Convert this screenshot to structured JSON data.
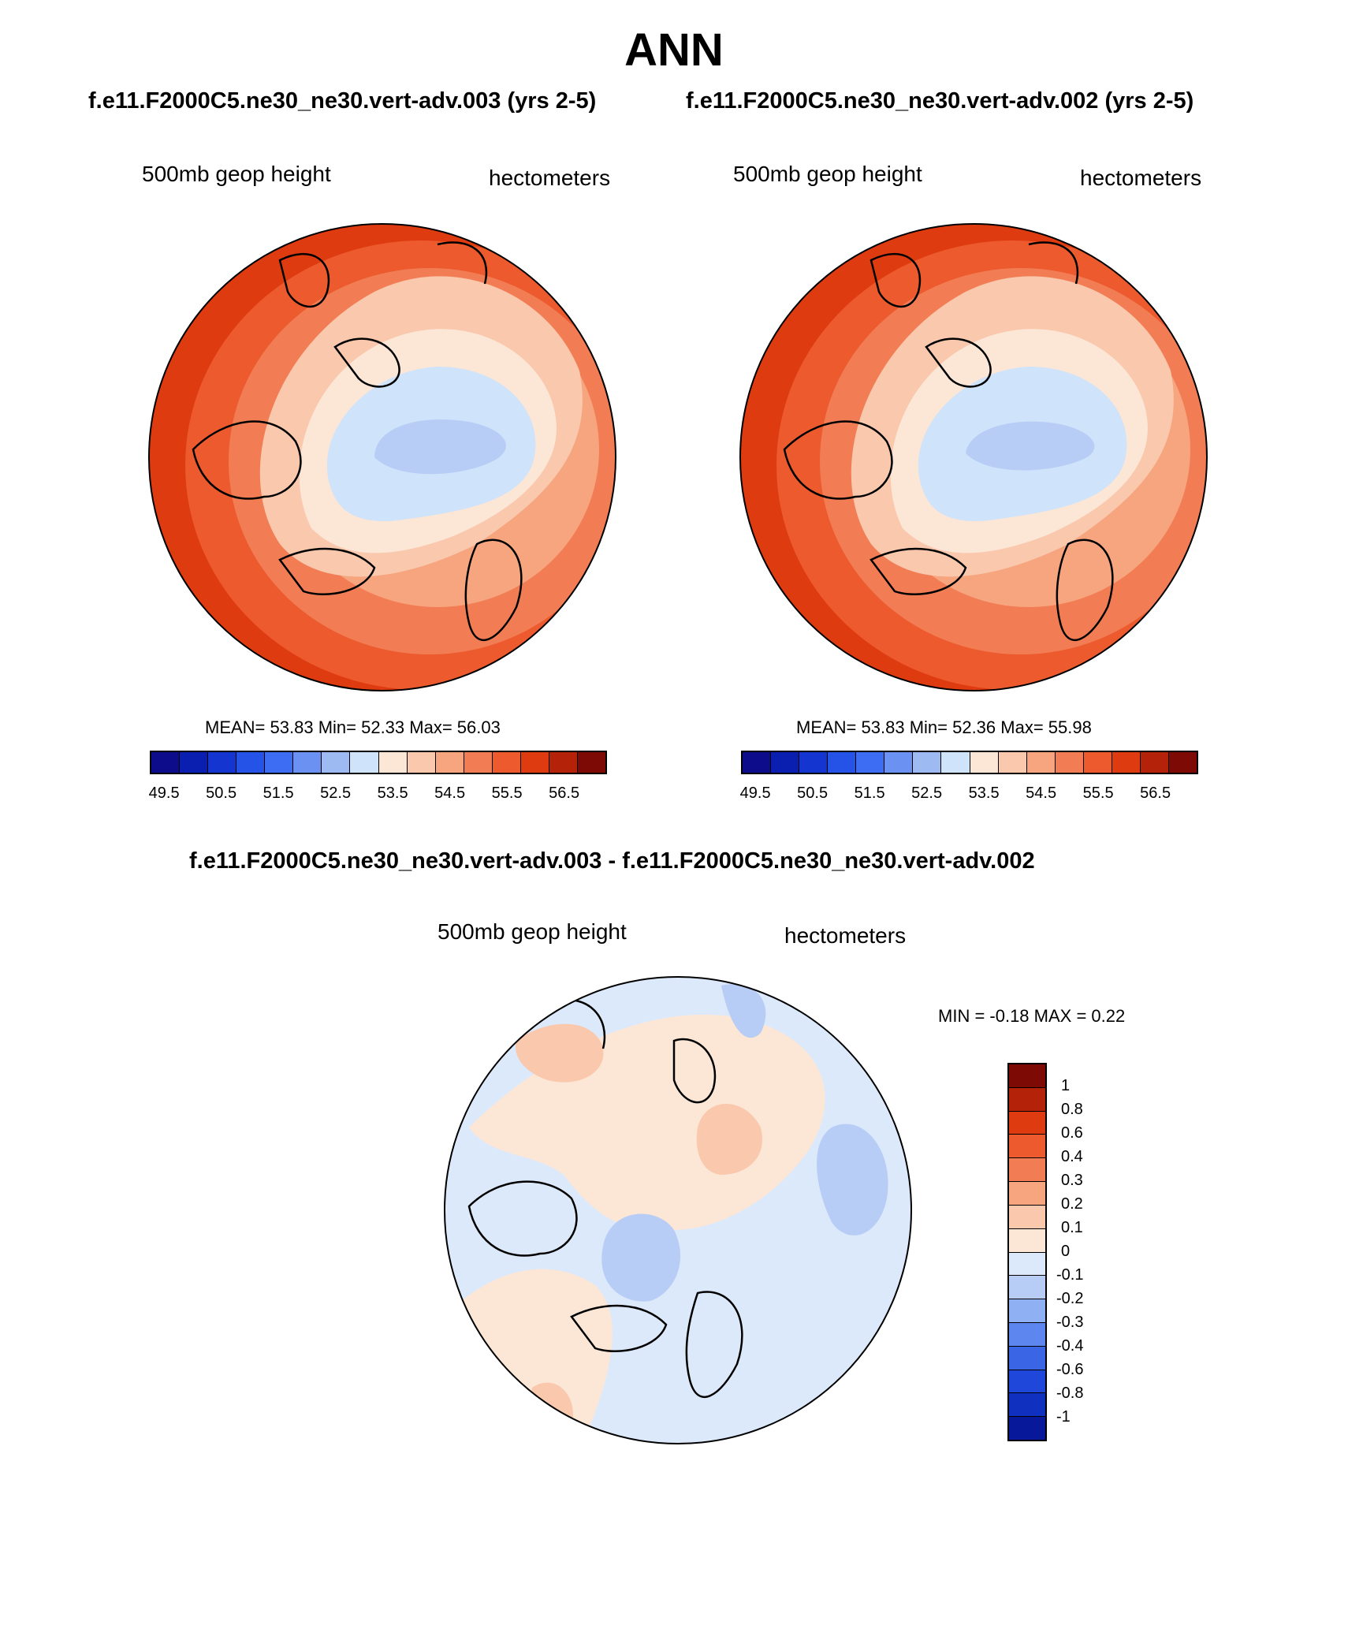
{
  "title": "ANN",
  "top_subtitle_left": "f.e11.F2000C5.ne30_ne30.vert-adv.003 (yrs 2-5)",
  "top_subtitle_right": "f.e11.F2000C5.ne30_ne30.vert-adv.002 (yrs 2-5)",
  "diff_subtitle": "f.e11.F2000C5.ne30_ne30.vert-adv.003 - f.e11.F2000C5.ne30_ne30.vert-adv.002",
  "panels": [
    {
      "left_label": "500mb geop height",
      "right_label": "hectometers",
      "stats": "MEAN=  53.83  Min=  52.33  Max=  56.03"
    },
    {
      "left_label": "500mb geop height",
      "right_label": "hectometers",
      "stats": "MEAN=  53.83  Min=  52.36  Max=  55.98"
    },
    {
      "left_label": "500mb geop height",
      "right_label": "hectometers",
      "stats": "MIN =  -0.18 MAX =    0.22"
    }
  ],
  "colorbar_abs": {
    "colors": [
      "#0d0d8c",
      "#0a1fb0",
      "#1535d0",
      "#2553e8",
      "#3d6df2",
      "#6b92f2",
      "#9dbbf2",
      "#cfe3fa",
      "#fce6d6",
      "#f9c8ad",
      "#f6a57f",
      "#f27d55",
      "#ec5a2e",
      "#df3b11",
      "#b32209",
      "#7d0a04"
    ],
    "labels": [
      "49.5",
      "50.5",
      "51.5",
      "52.5",
      "53.5",
      "54.5",
      "55.5",
      "56.5"
    ]
  },
  "colorbar_diff": {
    "colors": [
      "#7d0a04",
      "#b32209",
      "#df3b11",
      "#ec5a2e",
      "#f27d55",
      "#f6a57f",
      "#f9c8ad",
      "#fce6d6",
      "#dce9fb",
      "#b7cdf6",
      "#8fb0f3",
      "#5d87ee",
      "#3a66e6",
      "#1f48db",
      "#1030c0",
      "#08189a"
    ],
    "labels": [
      "1",
      "0.8",
      "0.6",
      "0.4",
      "0.3",
      "0.2",
      "0.1",
      "0",
      "-0.1",
      "-0.2",
      "-0.3",
      "-0.4",
      "-0.6",
      "-0.8",
      "-1"
    ]
  },
  "map_colors": {
    "outer": "#df3b11",
    "mid2": "#ec5a2e",
    "mid1": "#f27d55",
    "mid0": "#f6a57f",
    "warm1": "#f9c8ad",
    "warm0": "#fce6d6",
    "cool0": "#cfe3fa",
    "cool1": "#b7cdf6"
  }
}
